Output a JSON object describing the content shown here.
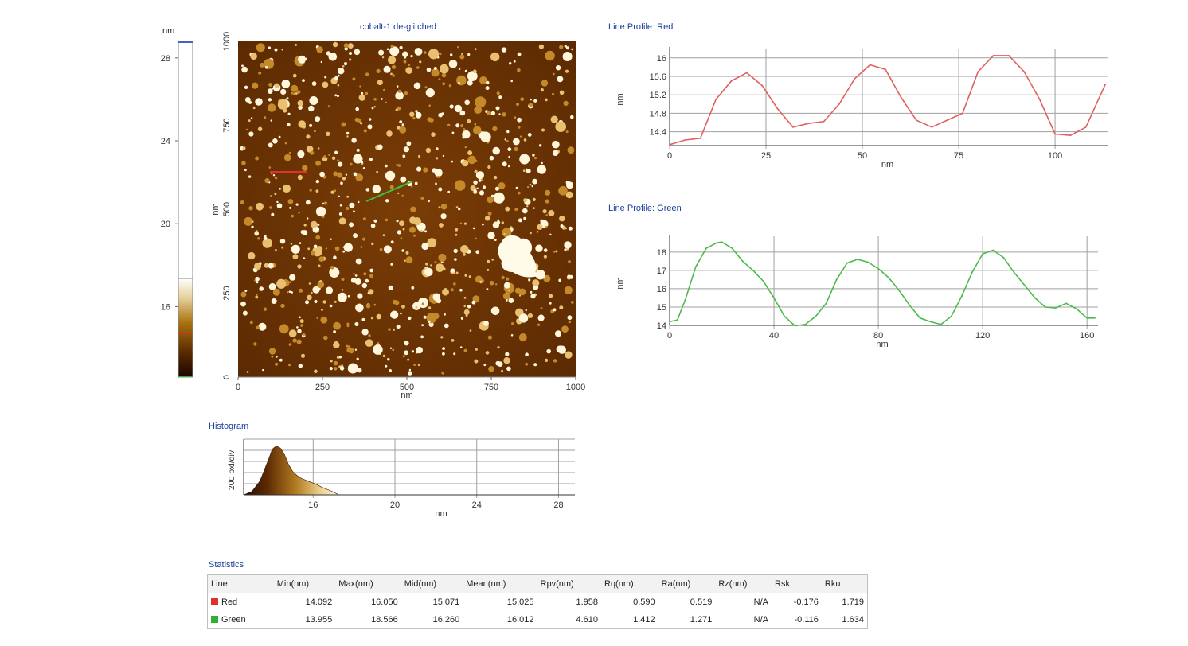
{
  "colorbar": {
    "unit": "nm",
    "ticks": [
      "28",
      "24",
      "20",
      "16"
    ],
    "range": [
      12.6,
      28.8
    ]
  },
  "afm_image": {
    "title": "cobalt-1 de-glitched",
    "xlabel": "nm",
    "ylabel": "nm",
    "xticks": [
      "0",
      "250",
      "500",
      "750",
      "1000"
    ],
    "yticks": [
      "0",
      "250",
      "500",
      "750",
      "1000"
    ]
  },
  "histogram": {
    "heading": "Histogram",
    "ylabel": "200 pxl/div",
    "xlabel": "nm",
    "xticks": [
      "16",
      "20",
      "24",
      "28"
    ]
  },
  "statistics": {
    "heading": "Statistics",
    "columns": [
      "Line",
      "Min(nm)",
      "Max(nm)",
      "Mid(nm)",
      "Mean(nm)",
      "Rpv(nm)",
      "Rq(nm)",
      "Ra(nm)",
      "Rz(nm)",
      "Rsk",
      "Rku"
    ],
    "rows": [
      {
        "name": "Red",
        "color": "#e03030",
        "values": [
          "14.092",
          "16.050",
          "15.071",
          "15.025",
          "1.958",
          "0.590",
          "0.519",
          "N/A",
          "-0.176",
          "1.719"
        ]
      },
      {
        "name": "Green",
        "color": "#30b030",
        "values": [
          "13.955",
          "18.566",
          "16.260",
          "16.012",
          "4.610",
          "1.412",
          "1.271",
          "N/A",
          "-0.116",
          "1.634"
        ]
      }
    ]
  },
  "chart_data": [
    {
      "type": "line",
      "title": "Line Profile: Red",
      "xlabel": "nm",
      "ylabel": "nm",
      "color": "#e06060",
      "xlim": [
        0,
        113
      ],
      "ylim": [
        14.1,
        16.1
      ],
      "xticks": [
        0,
        25,
        50,
        75,
        100
      ],
      "yticks": [
        14.4,
        14.8,
        15.2,
        15.6,
        16
      ],
      "xtick_labels": [
        "0",
        "25",
        "50",
        "75",
        "100"
      ],
      "ytick_labels": [
        "14.4",
        "14.8",
        "15.2",
        "15.6",
        "16"
      ],
      "x": [
        0,
        4,
        8,
        12,
        16,
        20,
        24,
        28,
        32,
        36,
        40,
        44,
        48,
        52,
        56,
        60,
        64,
        68,
        72,
        76,
        80,
        84,
        88,
        92,
        96,
        100,
        104,
        108,
        113
      ],
      "y": [
        14.12,
        14.22,
        14.26,
        15.1,
        15.5,
        15.68,
        15.4,
        14.9,
        14.5,
        14.58,
        14.62,
        15.0,
        15.55,
        15.85,
        15.75,
        15.15,
        14.65,
        14.5,
        14.65,
        14.8,
        15.7,
        16.05,
        16.05,
        15.7,
        15.1,
        14.35,
        14.32,
        14.5,
        15.42
      ]
    },
    {
      "type": "line",
      "title": "Line Profile: Green",
      "xlabel": "nm",
      "ylabel": "nm",
      "color": "#4cbb4c",
      "xlim": [
        0,
        163
      ],
      "ylim": [
        14,
        18.6
      ],
      "xticks": [
        0,
        40,
        80,
        120,
        160
      ],
      "yticks": [
        14,
        15,
        16,
        17,
        18
      ],
      "xtick_labels": [
        "0",
        "40",
        "80",
        "120",
        "160"
      ],
      "ytick_labels": [
        "14",
        "15",
        "16",
        "17",
        "18"
      ],
      "x": [
        0,
        3,
        6,
        10,
        14,
        18,
        20,
        24,
        28,
        32,
        36,
        40,
        44,
        48,
        52,
        56,
        60,
        64,
        68,
        72,
        76,
        80,
        84,
        88,
        92,
        96,
        100,
        104,
        108,
        112,
        116,
        120,
        124,
        128,
        132,
        136,
        140,
        144,
        148,
        152,
        156,
        160,
        163
      ],
      "y": [
        14.2,
        14.3,
        15.4,
        17.2,
        18.2,
        18.5,
        18.55,
        18.2,
        17.5,
        17.0,
        16.4,
        15.5,
        14.5,
        13.98,
        14.05,
        14.5,
        15.2,
        16.5,
        17.4,
        17.6,
        17.45,
        17.1,
        16.6,
        15.9,
        15.1,
        14.4,
        14.2,
        14.05,
        14.5,
        15.6,
        16.9,
        17.9,
        18.1,
        17.7,
        16.9,
        16.2,
        15.5,
        15.0,
        14.95,
        15.2,
        14.9,
        14.4,
        14.4
      ]
    },
    {
      "type": "area",
      "title": "Histogram",
      "xlabel": "nm",
      "ylabel": "200 pxl/div",
      "xlim": [
        12.6,
        28.8
      ],
      "ylim": [
        0,
        1000
      ],
      "x": [
        12.6,
        13.0,
        13.4,
        13.8,
        14.0,
        14.2,
        14.4,
        14.6,
        14.8,
        15.0,
        15.2,
        15.4,
        15.6,
        15.8,
        16.0,
        16.2,
        16.4,
        16.6,
        16.8,
        17.0,
        17.2
      ],
      "y": [
        0,
        60,
        250,
        620,
        820,
        880,
        840,
        720,
        540,
        420,
        350,
        300,
        270,
        240,
        210,
        180,
        140,
        110,
        80,
        50,
        10
      ]
    }
  ]
}
